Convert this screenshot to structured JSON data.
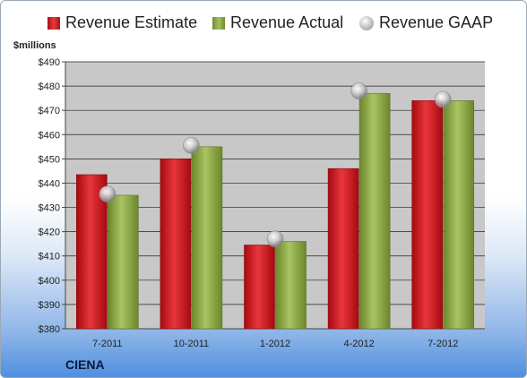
{
  "chart_data": {
    "type": "bar",
    "categories": [
      "7-2011",
      "10-2011",
      "1-2012",
      "4-2012",
      "7-2012"
    ],
    "series": [
      {
        "name": "Revenue Estimate",
        "values": [
          443.5,
          450,
          414.5,
          446,
          474
        ]
      },
      {
        "name": "Revenue Actual",
        "values": [
          435,
          455,
          416,
          477,
          474
        ]
      }
    ],
    "markers": {
      "name": "Revenue GAAP",
      "values": [
        435.5,
        455.5,
        417,
        478,
        474.5
      ]
    },
    "ylabel": "$millions",
    "ylim": [
      380,
      490
    ],
    "ytick_step": 10,
    "ytick_labels": [
      "$380",
      "$390",
      "$400",
      "$410",
      "$420",
      "$430",
      "$440",
      "$450",
      "$460",
      "$470",
      "$480",
      "$490"
    ],
    "grid": true,
    "legend_position": "top",
    "colors": {
      "estimate": "#cc1a20",
      "actual": "#8fae4a",
      "gaap": "#bdbdbd",
      "plot_bg": "#c8c8c8"
    }
  },
  "company": "CIENA"
}
